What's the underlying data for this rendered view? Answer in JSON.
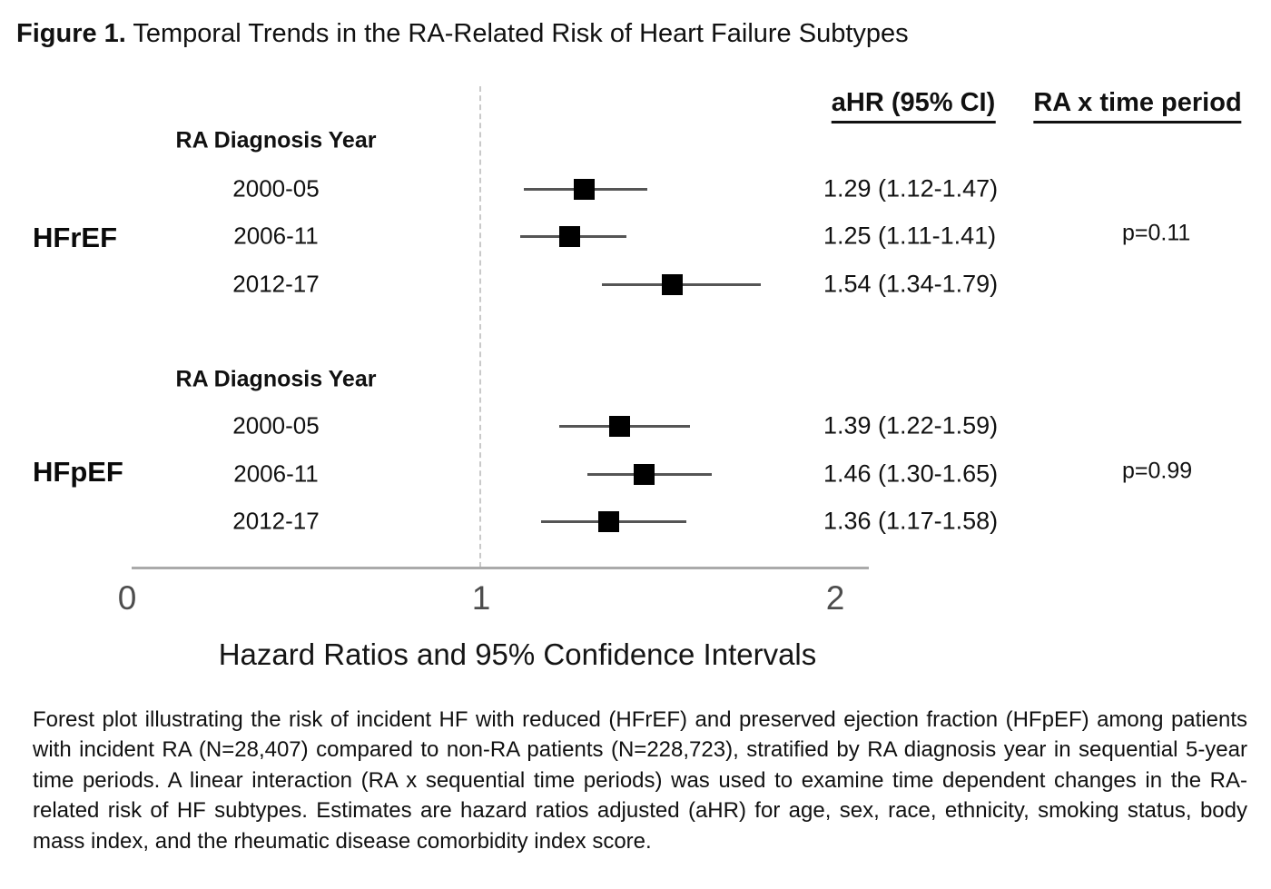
{
  "figure": {
    "label": "Figure 1.",
    "title_rest": " Temporal Trends in the RA-Related Risk of Heart Failure Subtypes"
  },
  "headers": {
    "ahr": "aHR (95% CI)",
    "interaction": "RA x time period"
  },
  "chart_data": {
    "type": "scatter",
    "subtype": "forest-plot",
    "xlabel": "Hazard Ratios and 95% Confidence Intervals",
    "x_ticks": [
      0,
      1,
      2
    ],
    "xlim": [
      0,
      2.1
    ],
    "reference_line_x": 1,
    "grid": false,
    "row_header_label": "RA Diagnosis Year",
    "groups": [
      {
        "name": "HFrEF",
        "row_header": "RA Diagnosis Year",
        "p_label": "p=0.11",
        "rows": [
          {
            "period": "2000-05",
            "hr": 1.29,
            "ci_low": 1.12,
            "ci_high": 1.47,
            "label": "1.29 (1.12-1.47)"
          },
          {
            "period": "2006-11",
            "hr": 1.25,
            "ci_low": 1.11,
            "ci_high": 1.41,
            "label": "1.25 (1.11-1.41)"
          },
          {
            "period": "2012-17",
            "hr": 1.54,
            "ci_low": 1.34,
            "ci_high": 1.79,
            "label": "1.54 (1.34-1.79)"
          }
        ]
      },
      {
        "name": "HFpEF",
        "row_header": "RA Diagnosis Year",
        "p_label": "p=0.99",
        "rows": [
          {
            "period": "2000-05",
            "hr": 1.39,
            "ci_low": 1.22,
            "ci_high": 1.59,
            "label": "1.39 (1.22-1.59)"
          },
          {
            "period": "2006-11",
            "hr": 1.46,
            "ci_low": 1.3,
            "ci_high": 1.65,
            "label": "1.46 (1.30-1.65)"
          },
          {
            "period": "2012-17",
            "hr": 1.36,
            "ci_low": 1.17,
            "ci_high": 1.58,
            "label": "1.36 (1.17-1.58)"
          }
        ]
      }
    ]
  },
  "caption": "Forest plot illustrating the risk of incident HF with reduced (HFrEF) and preserved ejection fraction (HFpEF) among patients with incident RA (N=28,407) compared to non-RA patients (N=228,723), stratified by RA diagnosis year in sequential 5-year time periods. A linear interaction (RA x sequential time periods) was used to examine time dependent changes in the RA-related risk of HF subtypes. Estimates are hazard ratios adjusted (aHR) for age, sex, race, ethnicity, smoking status, body mass index, and the rheumatic disease comorbidity index score.",
  "colors": {
    "marker": "#000000",
    "ci_line": "#555555",
    "axis_line": "#aaaaaa",
    "reference_line": "#c9c9c9",
    "tick_text": "#4d4d4d",
    "text": "#111111",
    "background": "#ffffff"
  }
}
